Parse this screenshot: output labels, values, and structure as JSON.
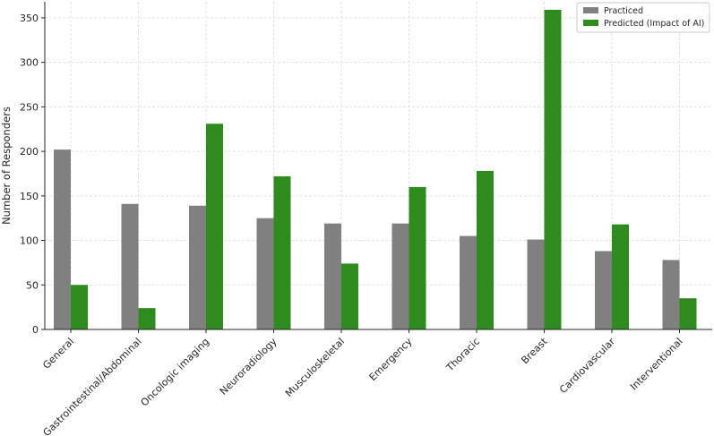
{
  "chart_data": {
    "type": "bar",
    "title": "",
    "xlabel": "",
    "ylabel": "Number of Responders",
    "categories": [
      "General",
      "Gastrointestinal/Abdominal",
      "Oncologic imaging",
      "Neuroradiology",
      "Musculoskeletal",
      "Emergency",
      "Thoracic",
      "Breast",
      "Cardiovascular",
      "Interventional"
    ],
    "series": [
      {
        "name": "Practiced",
        "color": "#808080",
        "values": [
          202,
          141,
          139,
          125,
          119,
          119,
          105,
          101,
          88,
          78
        ]
      },
      {
        "name": "Predicted (Impact of AI)",
        "color": "#2e8b1e",
        "values": [
          50,
          24,
          231,
          172,
          74,
          160,
          178,
          359,
          118,
          35
        ]
      }
    ],
    "ylim": [
      0,
      368
    ],
    "yticks": [
      0,
      50,
      100,
      150,
      200,
      250,
      300,
      350
    ],
    "grid": true,
    "legend_position": "top-right",
    "xtick_rotation": -45
  }
}
